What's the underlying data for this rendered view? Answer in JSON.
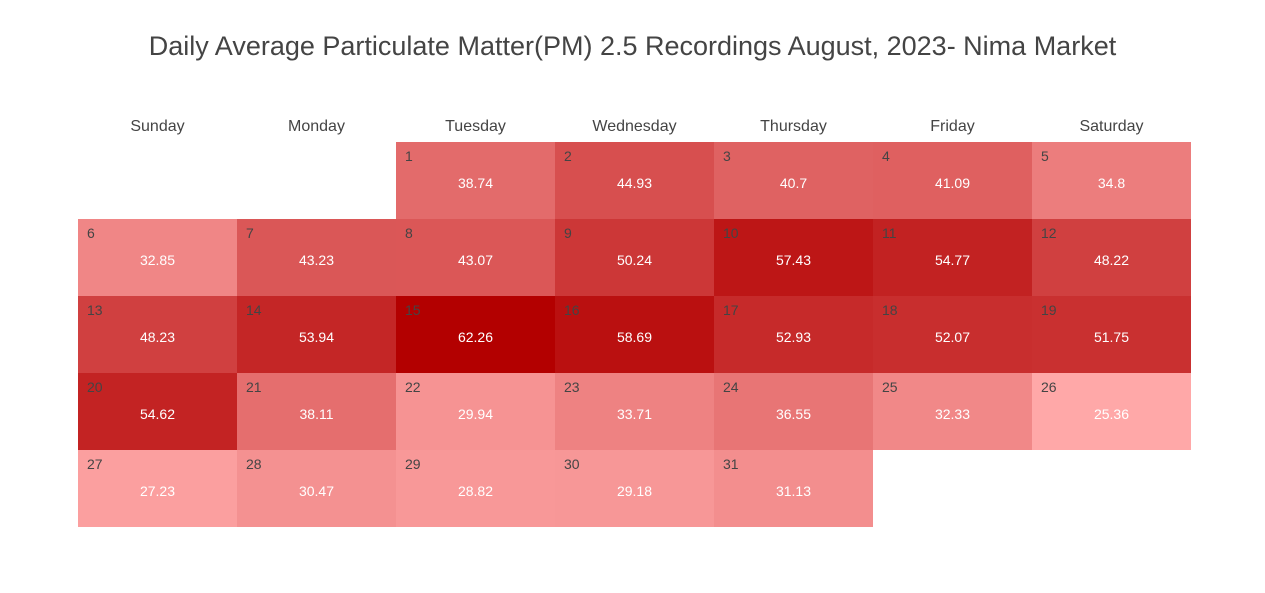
{
  "chart_data": {
    "type": "heatmap",
    "title": "Daily Average Particulate Matter(PM) 2.5 Recordings August, 2023- Nima Market",
    "weekdays": [
      "Sunday",
      "Monday",
      "Tuesday",
      "Wednesday",
      "Thursday",
      "Friday",
      "Saturday"
    ],
    "first_weekday_index": 2,
    "days": [
      1,
      2,
      3,
      4,
      5,
      6,
      7,
      8,
      9,
      10,
      11,
      12,
      13,
      14,
      15,
      16,
      17,
      18,
      19,
      20,
      21,
      22,
      23,
      24,
      25,
      26,
      27,
      28,
      29,
      30,
      31
    ],
    "values": [
      "38.74",
      "44.93",
      "40.7",
      "41.09",
      "34.8",
      "32.85",
      "43.23",
      "43.07",
      "50.24",
      "57.43",
      "54.77",
      "48.22",
      "48.23",
      "53.94",
      "62.26",
      "58.69",
      "52.93",
      "52.07",
      "51.75",
      "54.62",
      "38.11",
      "29.94",
      "33.71",
      "36.55",
      "32.33",
      "25.36",
      "27.23",
      "30.47",
      "28.82",
      "29.18",
      "31.13"
    ],
    "colorscale": {
      "low": "#ffa8a8",
      "high": "#b30000"
    },
    "legend": false
  }
}
